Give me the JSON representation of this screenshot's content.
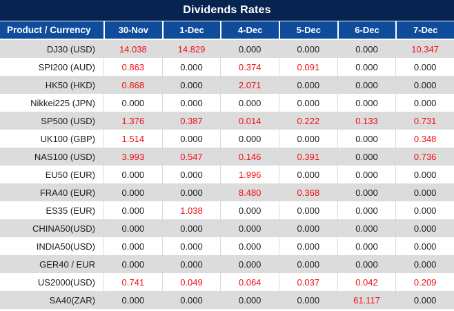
{
  "title": "Dividends Rates",
  "colors": {
    "title_background": "#07234f",
    "header_background": "#0f4c9c",
    "row_alt_background": "#dcdcdc",
    "row_background": "#ffffff",
    "nonzero_value_text": "#f10e14",
    "zero_value_text": "#1c1c1c",
    "header_text": "#ffffff"
  },
  "table": {
    "product_header": "Product / Currency",
    "date_headers": [
      "30-Nov",
      "1-Dec",
      "4-Dec",
      "5-Dec",
      "6-Dec",
      "7-Dec"
    ]
  },
  "chart_data": {
    "type": "table",
    "title": "Dividends Rates",
    "columns": [
      "Product / Currency",
      "30-Nov",
      "1-Dec",
      "4-Dec",
      "5-Dec",
      "6-Dec",
      "7-Dec"
    ],
    "rows": [
      {
        "product": "DJ30 (USD)",
        "values": [
          "14.038",
          "14.829",
          "0.000",
          "0.000",
          "0.000",
          "10.347"
        ]
      },
      {
        "product": "SPI200 (AUD)",
        "values": [
          "0.863",
          "0.000",
          "0.374",
          "0.091",
          "0.000",
          "0.000"
        ]
      },
      {
        "product": "HK50 (HKD)",
        "values": [
          "0.868",
          "0.000",
          "2.071",
          "0.000",
          "0.000",
          "0.000"
        ]
      },
      {
        "product": "Nikkei225 (JPN)",
        "values": [
          "0.000",
          "0.000",
          "0.000",
          "0.000",
          "0.000",
          "0.000"
        ]
      },
      {
        "product": "SP500 (USD)",
        "values": [
          "1.376",
          "0.387",
          "0.014",
          "0.222",
          "0.133",
          "0.731"
        ]
      },
      {
        "product": "UK100 (GBP)",
        "values": [
          "1.514",
          "0.000",
          "0.000",
          "0.000",
          "0.000",
          "0.348"
        ]
      },
      {
        "product": "NAS100 (USD)",
        "values": [
          "3.993",
          "0.547",
          "0.146",
          "0.391",
          "0.000",
          "0.736"
        ]
      },
      {
        "product": "EU50 (EUR)",
        "values": [
          "0.000",
          "0.000",
          "1.996",
          "0.000",
          "0.000",
          "0.000"
        ]
      },
      {
        "product": "FRA40 (EUR)",
        "values": [
          "0.000",
          "0.000",
          "8.480",
          "0.368",
          "0.000",
          "0.000"
        ]
      },
      {
        "product": "ES35 (EUR)",
        "values": [
          "0.000",
          "1.038",
          "0.000",
          "0.000",
          "0.000",
          "0.000"
        ]
      },
      {
        "product": "CHINA50(USD)",
        "values": [
          "0.000",
          "0.000",
          "0.000",
          "0.000",
          "0.000",
          "0.000"
        ]
      },
      {
        "product": "INDIA50(USD)",
        "values": [
          "0.000",
          "0.000",
          "0.000",
          "0.000",
          "0.000",
          "0.000"
        ]
      },
      {
        "product": "GER40 / EUR",
        "values": [
          "0.000",
          "0.000",
          "0.000",
          "0.000",
          "0.000",
          "0.000"
        ]
      },
      {
        "product": "US2000(USD)",
        "values": [
          "0.741",
          "0.049",
          "0.064",
          "0.037",
          "0.042",
          "0.209"
        ]
      },
      {
        "product": "SA40(ZAR)",
        "values": [
          "0.000",
          "0.000",
          "0.000",
          "0.000",
          "61.117",
          "0.000"
        ]
      }
    ]
  }
}
